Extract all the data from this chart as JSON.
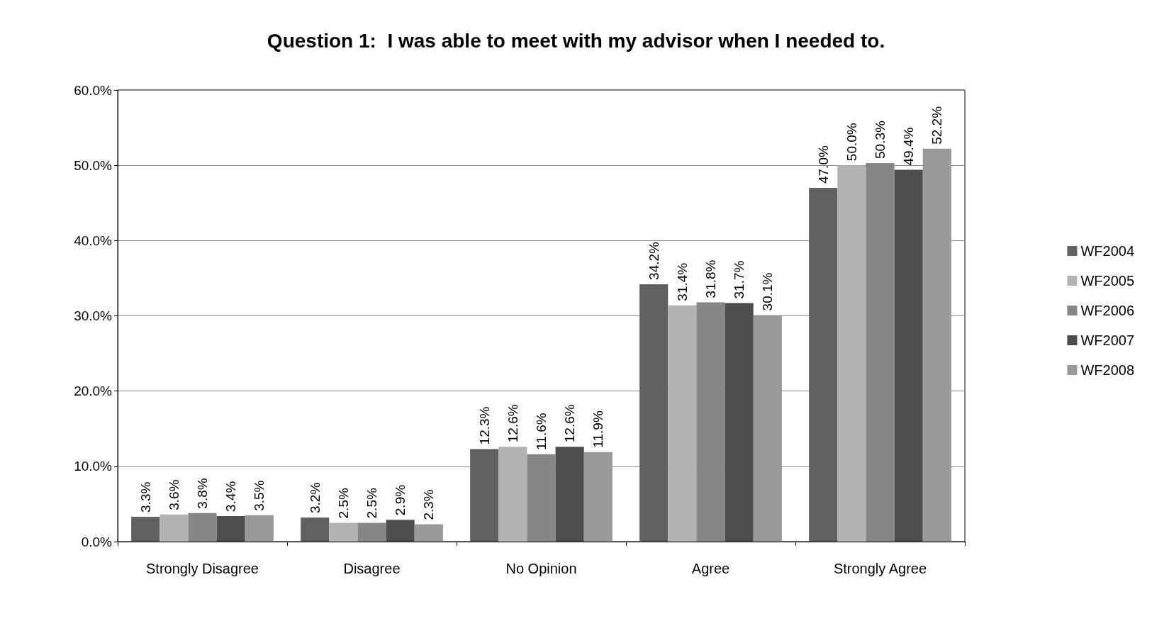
{
  "chart_data": {
    "type": "bar",
    "title": "Question 1:  I was able to meet with my advisor when I needed to.",
    "categories": [
      "Strongly Disagree",
      "Disagree",
      "No Opinion",
      "Agree",
      "Strongly Agree"
    ],
    "series": [
      {
        "name": "WF2004",
        "color": "#616161",
        "values": [
          3.3,
          3.2,
          12.3,
          34.2,
          47.0
        ],
        "value_labels": [
          "3.3%",
          "3.2%",
          "12.3%",
          "34.2%",
          "47.0%"
        ]
      },
      {
        "name": "WF2005",
        "color": "#b3b3b3",
        "values": [
          3.6,
          2.5,
          12.6,
          31.4,
          50.0
        ],
        "value_labels": [
          "3.6%",
          "2.5%",
          "12.6%",
          "31.4%",
          "50.0%"
        ]
      },
      {
        "name": "WF2006",
        "color": "#868686",
        "values": [
          3.8,
          2.5,
          11.6,
          31.8,
          50.3
        ],
        "value_labels": [
          "3.8%",
          "2.5%",
          "11.6%",
          "31.8%",
          "50.3%"
        ]
      },
      {
        "name": "WF2007",
        "color": "#4d4d4d",
        "values": [
          3.4,
          2.9,
          12.6,
          31.7,
          49.4
        ],
        "value_labels": [
          "3.4%",
          "2.9%",
          "12.6%",
          "31.7%",
          "49.4%"
        ]
      },
      {
        "name": "WF2008",
        "color": "#999999",
        "values": [
          3.5,
          2.3,
          11.9,
          30.1,
          52.2
        ],
        "value_labels": [
          "3.5%",
          "2.3%",
          "11.9%",
          "30.1%",
          "52.2%"
        ]
      }
    ],
    "ylim": [
      0,
      60
    ],
    "yticks": [
      {
        "value": 0,
        "label": "0.0%"
      },
      {
        "value": 10,
        "label": "10.0%"
      },
      {
        "value": 20,
        "label": "20.0%"
      },
      {
        "value": 30,
        "label": "30.0%"
      },
      {
        "value": 40,
        "label": "40.0%"
      },
      {
        "value": 50,
        "label": "50.0%"
      },
      {
        "value": 60,
        "label": "60.0%"
      }
    ],
    "grid": "y",
    "legend": "right"
  }
}
